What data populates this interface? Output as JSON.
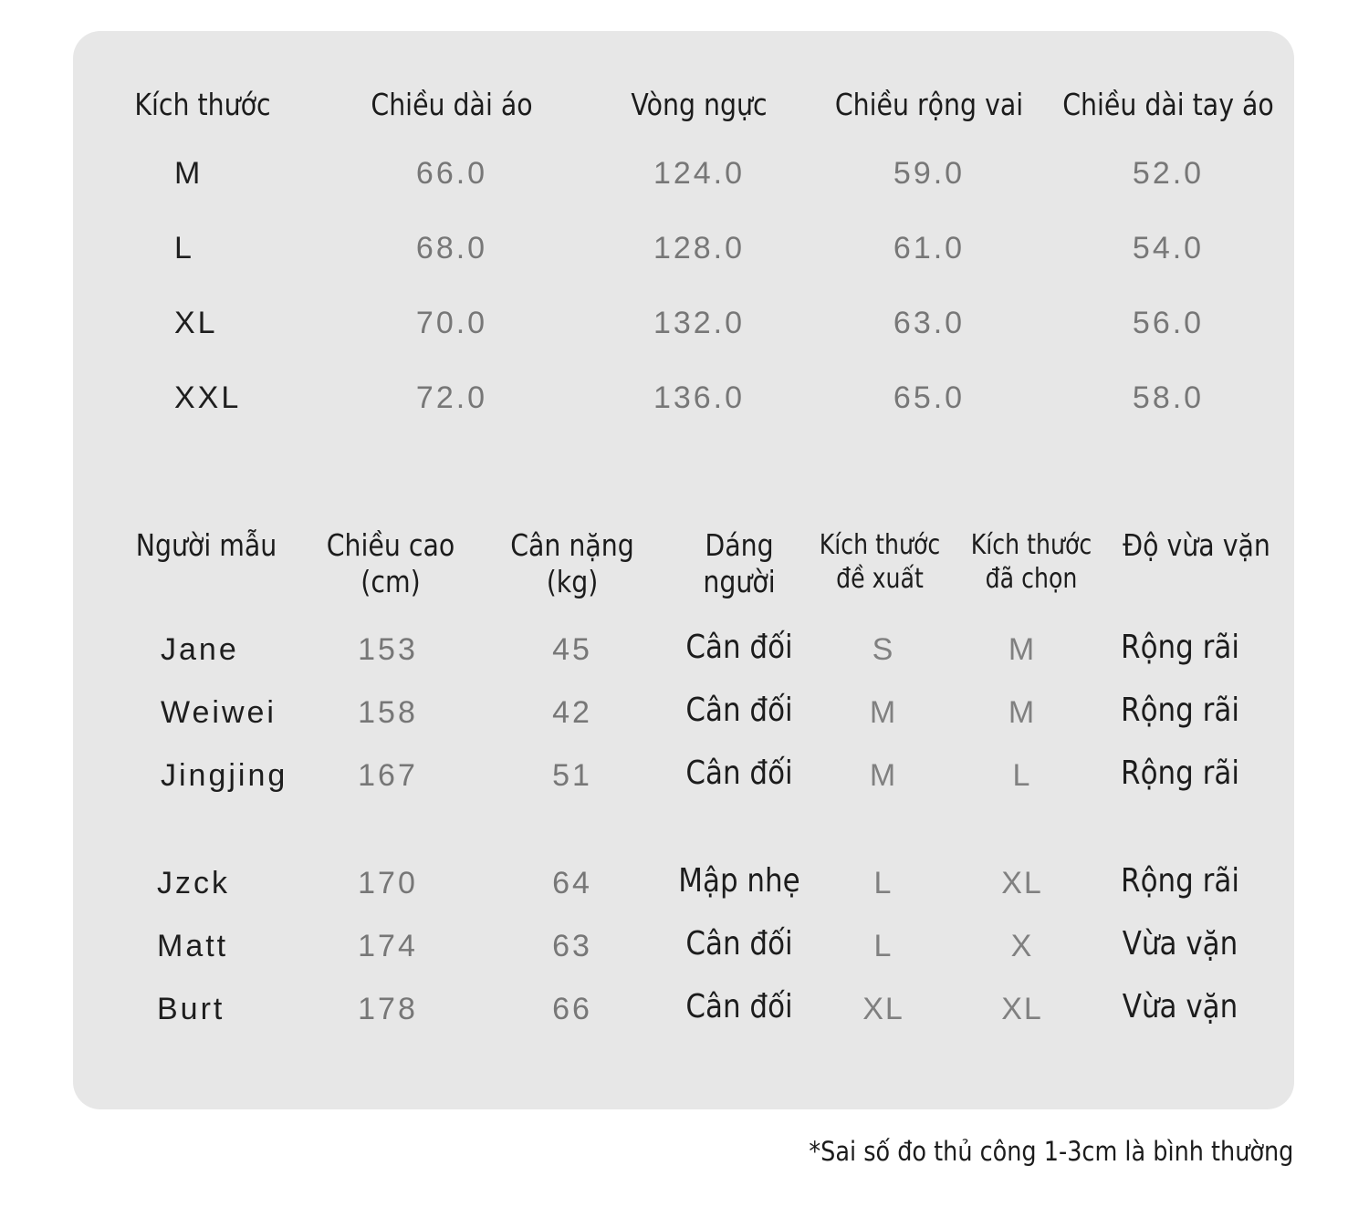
{
  "size_table": {
    "headers": [
      "Kích thước",
      "Chiều dài áo",
      "Vòng ngực",
      "Chiều rộng vai",
      "Chiều dài tay áo"
    ],
    "rows": [
      [
        "M",
        "66.0",
        "124.0",
        "59.0",
        "52.0"
      ],
      [
        "L",
        "68.0",
        "128.0",
        "61.0",
        "54.0"
      ],
      [
        "XL",
        "70.0",
        "132.0",
        "63.0",
        "56.0"
      ],
      [
        "XXL",
        "72.0",
        "136.0",
        "65.0",
        "58.0"
      ]
    ]
  },
  "model_table": {
    "headers": [
      [
        "Người mẫu"
      ],
      [
        "Chiều cao",
        "(cm)"
      ],
      [
        "Cân nặng",
        "(kg)"
      ],
      [
        "Dáng",
        "người"
      ],
      [
        "Kích thước",
        "đề xuất"
      ],
      [
        "Kích thước",
        "đã chọn"
      ],
      [
        "Độ vừa vặn"
      ]
    ],
    "rows": [
      [
        "Jane",
        "153",
        "45",
        "Cân đối",
        "S",
        "M",
        "Rộng rãi"
      ],
      [
        "Weiwei",
        "158",
        "42",
        "Cân đối",
        "M",
        "M",
        "Rộng rãi"
      ],
      [
        "Jingjing",
        "167",
        "51",
        "Cân đối",
        "M",
        "L",
        "Rộng rãi"
      ],
      [
        "Jzck",
        "170",
        "64",
        "Mập nhẹ",
        "L",
        "XL",
        "Rộng rãi"
      ],
      [
        "Matt",
        "174",
        "63",
        "Cân đối",
        "L",
        "X",
        "Vừa vặn"
      ],
      [
        "Burt",
        "178",
        "66",
        "Cân đối",
        "XL",
        "XL",
        "Vừa vặn"
      ]
    ]
  },
  "footnote": "*Sai số đo thủ công 1-3cm là bình thường"
}
